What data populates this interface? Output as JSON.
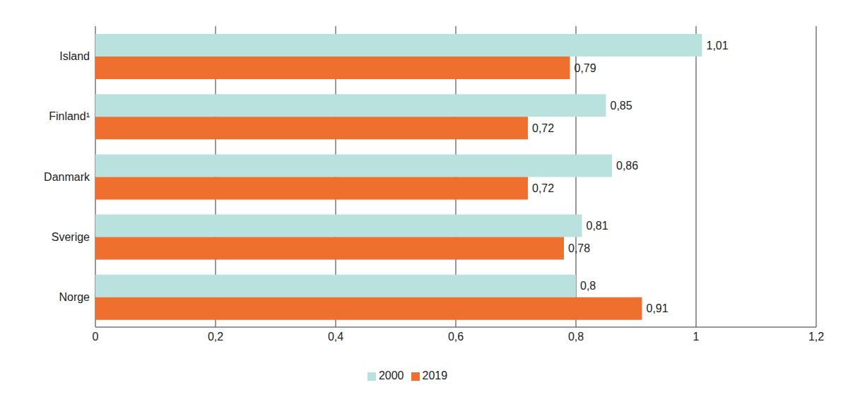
{
  "chart_data": {
    "type": "bar",
    "orientation": "horizontal",
    "categories": [
      "Island",
      "Finland¹",
      "Danmark",
      "Sverige",
      "Norge"
    ],
    "series": [
      {
        "name": "2000",
        "color": "#b9e2df",
        "values": [
          1.01,
          0.85,
          0.86,
          0.81,
          0.8
        ],
        "value_labels": [
          "1,01",
          "0,85",
          "0,86",
          "0,81",
          "0,8"
        ]
      },
      {
        "name": "2019",
        "color": "#ef6f2e",
        "values": [
          0.79,
          0.72,
          0.72,
          0.78,
          0.91
        ],
        "value_labels": [
          "0,79",
          "0,72",
          "0,72",
          "0,78",
          "0,91"
        ]
      }
    ],
    "xlim": [
      0,
      1.2
    ],
    "xticks": [
      0,
      {
        "value": 0.2,
        "label": "0,2"
      },
      {
        "value": 0.4,
        "label": "0,4"
      },
      {
        "value": 0.6,
        "label": "0,6"
      },
      {
        "value": 0.8,
        "label": "0,8"
      },
      1,
      {
        "value": 1.2,
        "label": "1,2"
      }
    ],
    "grid": true,
    "legend": "bottom",
    "data_labels": true
  }
}
